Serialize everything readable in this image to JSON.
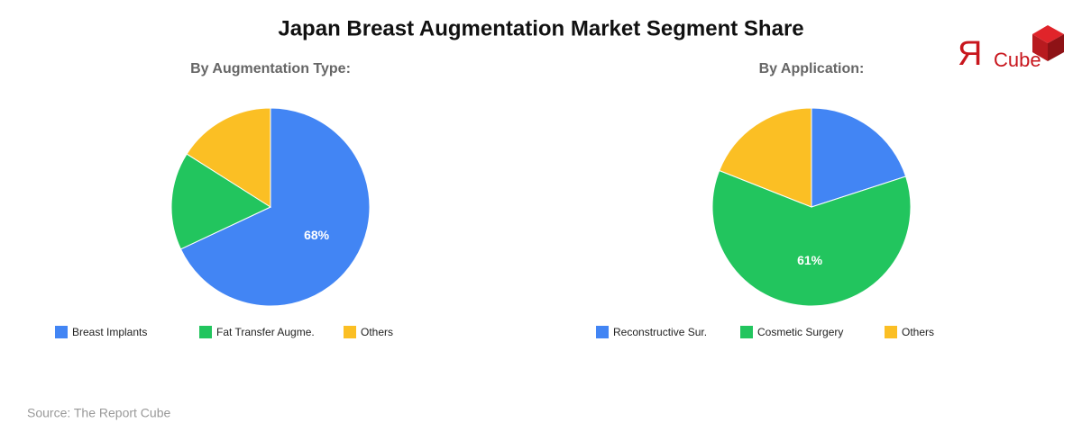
{
  "title": "Japan Breast Augmentation Market Segment Share",
  "logo": {
    "mark": "Я",
    "text": "Cube"
  },
  "source": "Source: The Report Cube",
  "chart_data": [
    {
      "type": "pie",
      "subtitle": "By Augmentation Type:",
      "categories": [
        "Breast Implants",
        "Fat Transfer Augme.",
        "Others"
      ],
      "values": [
        68,
        16,
        16
      ],
      "value_labels": [
        "68%",
        null,
        null
      ],
      "colors": [
        "#4285f4",
        "#22c55e",
        "#fbbf24"
      ]
    },
    {
      "type": "pie",
      "subtitle": "By Application:",
      "categories": [
        "Reconstructive Sur.",
        "Cosmetic Surgery",
        "Others"
      ],
      "values": [
        20,
        61,
        19
      ],
      "value_labels": [
        null,
        "61%",
        null
      ],
      "colors": [
        "#4285f4",
        "#22c55e",
        "#fbbf24"
      ]
    }
  ]
}
